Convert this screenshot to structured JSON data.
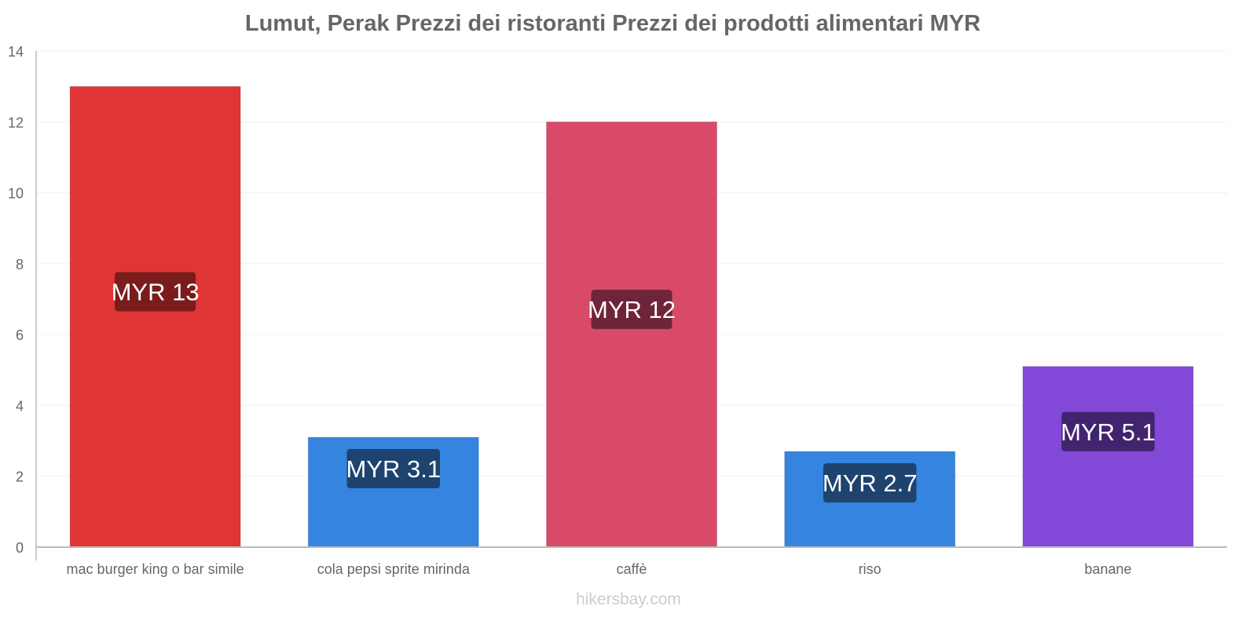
{
  "chart_data": {
    "type": "bar",
    "title": "Lumut, Perak Prezzi dei ristoranti Prezzi dei prodotti alimentari MYR",
    "categories": [
      "mac burger king o bar simile",
      "cola pepsi sprite mirinda",
      "caffè",
      "riso",
      "banane"
    ],
    "values": [
      13,
      3.1,
      12,
      2.7,
      5.1
    ],
    "data_labels": [
      "MYR 13",
      "MYR 3.1",
      "MYR 12",
      "MYR 2.7",
      "MYR 5.1"
    ],
    "colors": [
      "#e03535",
      "#3584e0",
      "#d84a68",
      "#3584e0",
      "#8249d8"
    ],
    "label_colors": [
      "#7a1c1c",
      "#1e436e",
      "#6e2539",
      "#1e436e",
      "#42246e"
    ],
    "xlabel": "",
    "ylabel": "",
    "ylim": [
      0,
      14
    ],
    "yticks": [
      0,
      2,
      4,
      6,
      8,
      10,
      12,
      14
    ],
    "grid": true
  },
  "footer": "hikersbay.com"
}
